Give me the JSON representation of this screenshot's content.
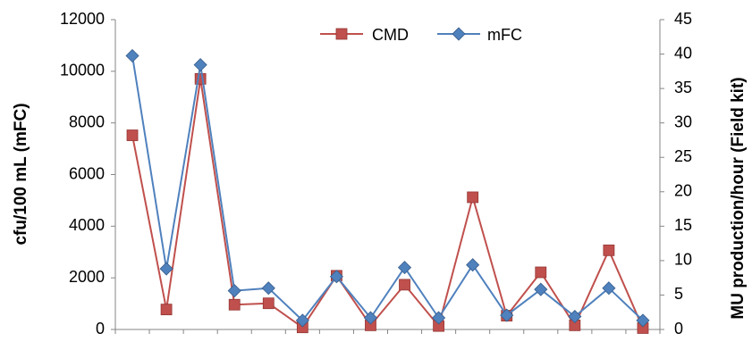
{
  "chart_data": {
    "type": "line",
    "title": "",
    "xlabel": "",
    "ylabel": "cfu/100 mL (mFC)",
    "y2label": "MU production/hour (Field kit)",
    "ylim": [
      0,
      12000
    ],
    "yticks": [
      0,
      2000,
      4000,
      6000,
      8000,
      10000,
      12000
    ],
    "y2lim": [
      0,
      45
    ],
    "y2ticks": [
      0,
      5,
      10,
      15,
      20,
      25,
      30,
      35,
      40,
      45
    ],
    "grid": false,
    "legend_position": "top-center",
    "x": [
      1,
      2,
      3,
      4,
      5,
      6,
      7,
      8,
      9,
      10,
      11,
      12,
      13,
      14,
      15,
      16
    ],
    "series": [
      {
        "name": "CMD",
        "axis": "right",
        "color": "#C0504D",
        "marker": "square",
        "values": [
          28.2,
          2.9,
          36.4,
          3.6,
          3.8,
          0.3,
          7.8,
          0.6,
          6.5,
          0.5,
          19.2,
          2.0,
          8.3,
          0.6,
          11.5,
          0.2
        ]
      },
      {
        "name": "mFC",
        "axis": "left",
        "color": "#4F81BD",
        "marker": "diamond",
        "values": [
          10600,
          2350,
          10250,
          1500,
          1600,
          350,
          2050,
          450,
          2400,
          450,
          2500,
          550,
          1550,
          500,
          1600,
          350
        ]
      }
    ]
  }
}
